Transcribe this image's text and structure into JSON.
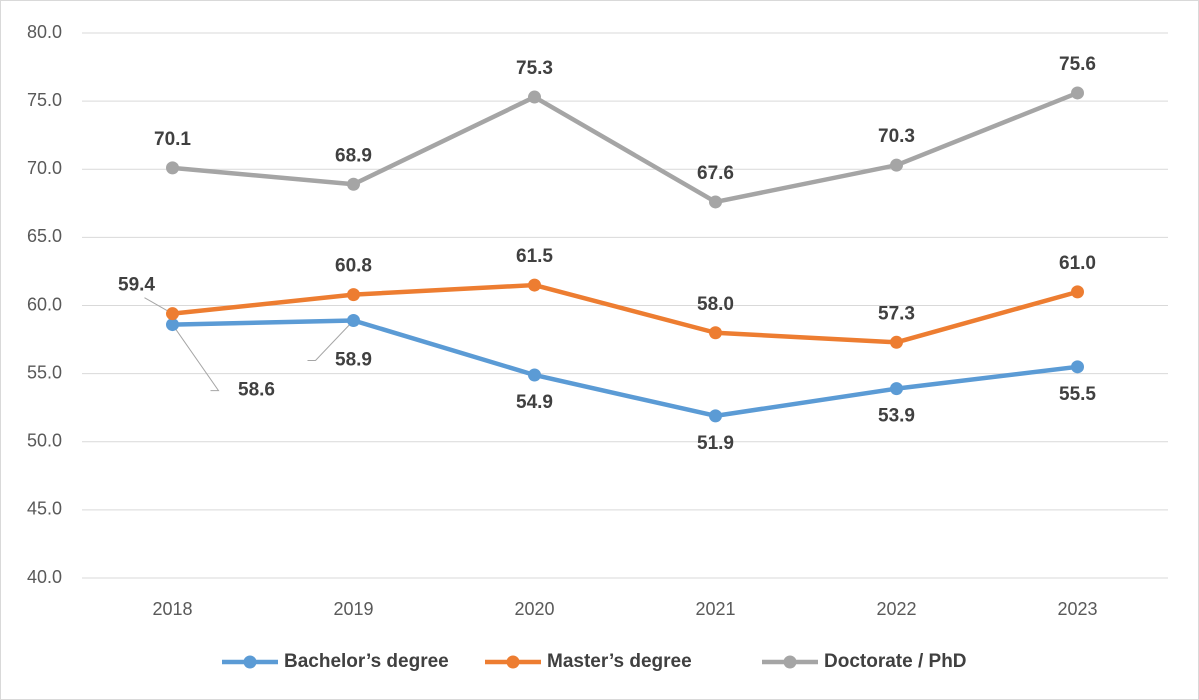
{
  "chart_data": {
    "type": "line",
    "categories": [
      "2018",
      "2019",
      "2020",
      "2021",
      "2022",
      "2023"
    ],
    "series": [
      {
        "name": "Bachelor’s degree",
        "color": "#5b9bd5",
        "values": [
          58.6,
          58.9,
          54.9,
          51.9,
          53.9,
          55.5
        ],
        "value_labels": [
          "58.6",
          "58.9",
          "54.9",
          "51.9",
          "53.9",
          "55.5"
        ]
      },
      {
        "name": "Master’s degree",
        "color": "#ed7d31",
        "values": [
          59.4,
          60.8,
          61.5,
          58.0,
          57.3,
          61.0
        ],
        "value_labels": [
          "59.4",
          "60.8",
          "61.5",
          "58.0",
          "57.3",
          "61.0"
        ]
      },
      {
        "name": "Doctorate / PhD",
        "color": "#a5a5a5",
        "values": [
          70.1,
          68.9,
          75.3,
          67.6,
          70.3,
          75.6
        ],
        "value_labels": [
          "70.1",
          "68.9",
          "75.3",
          "67.6",
          "70.3",
          "75.6"
        ]
      }
    ],
    "ylim": [
      40,
      80
    ],
    "yticks": [
      {
        "value": 40,
        "label": "40.0"
      },
      {
        "value": 45,
        "label": "45.0"
      },
      {
        "value": 50,
        "label": "50.0"
      },
      {
        "value": 55,
        "label": "55.0"
      },
      {
        "value": 60,
        "label": "60.0"
      },
      {
        "value": 65,
        "label": "65.0"
      },
      {
        "value": 70,
        "label": "70.0"
      },
      {
        "value": 75,
        "label": "75.0"
      },
      {
        "value": 80,
        "label": "80.0"
      }
    ],
    "grid": true,
    "legend": "bottom"
  }
}
